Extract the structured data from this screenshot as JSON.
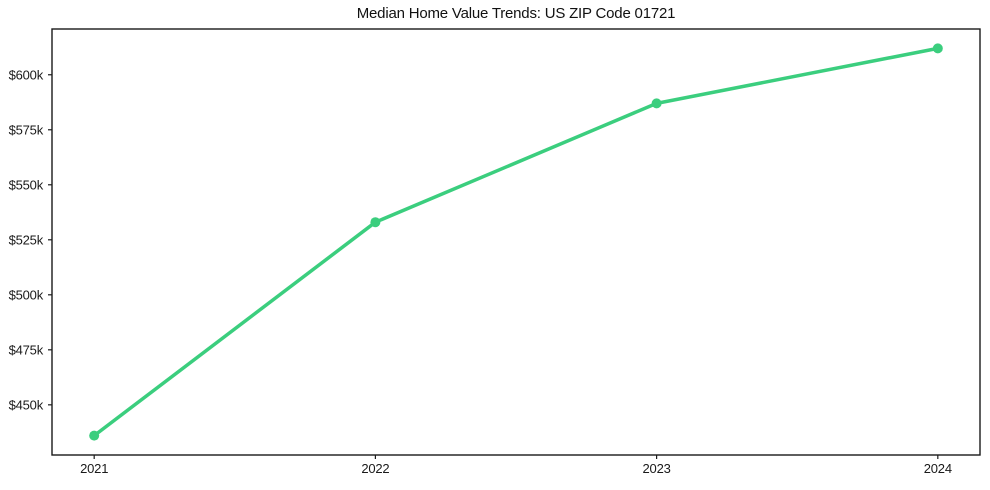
{
  "page": {
    "background": "#ffffff"
  },
  "chart_data": {
    "type": "line",
    "title": "Median Home Value Trends: US ZIP Code 01721",
    "xlabel": "",
    "ylabel": "",
    "x": [
      2021,
      2022,
      2023,
      2024
    ],
    "x_tick_labels": [
      "2021",
      "2022",
      "2023",
      "2024"
    ],
    "series": [
      {
        "values": [
          436000,
          533000,
          587000,
          612000
        ],
        "color": "#3bce7e",
        "line_width": 3.5,
        "marker": "circle",
        "marker_radius": 5
      }
    ],
    "y_tick_values": [
      450000,
      475000,
      500000,
      525000,
      550000,
      575000,
      600000
    ],
    "y_tick_labels": [
      "$450k",
      "$475k",
      "$500k",
      "$525k",
      "$550k",
      "$575k",
      "$600k"
    ],
    "xlim": [
      2020.85,
      2024.15
    ],
    "ylim": [
      427200,
      620800
    ],
    "grid": false,
    "legend": "none",
    "axis_color": "#1a1a1a",
    "spine_width": 1.4,
    "tick_length": 4
  }
}
